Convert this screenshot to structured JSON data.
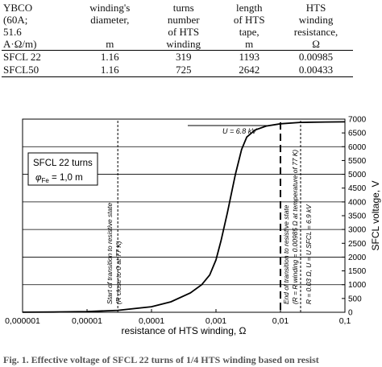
{
  "table": {
    "headers": [
      [
        "YBCO",
        "(60A;",
        "51.6",
        "A·Ω/m)"
      ],
      [
        "winding's",
        "diameter,"
      ],
      [
        "turns",
        "number",
        "of HTS",
        "winding"
      ],
      [
        "length",
        "of HTS",
        "tape,"
      ],
      [
        "HTS",
        "winding",
        "resistance,"
      ]
    ],
    "units": [
      "",
      "m",
      "",
      "m",
      "Ω"
    ],
    "rows": [
      [
        "SFCL 22",
        "1.16",
        "319",
        "1193",
        "0.00985"
      ],
      [
        "SFCL50",
        "1.16",
        "725",
        "2642",
        "0.00433"
      ]
    ]
  },
  "chart_data": {
    "type": "line",
    "x_scale": "log",
    "xlim": [
      1e-06,
      0.1
    ],
    "ylim": [
      0,
      7000
    ],
    "xlabel": "resistance of HTS winding, Ω",
    "ylabel": "SFCL voltage, V",
    "x_tick_labels": [
      "0,000001",
      "0,00001",
      "0,0001",
      "0,001",
      "0,01",
      "0,1"
    ],
    "y_tick_labels": [
      "0",
      "500",
      "1000",
      "1500",
      "2000",
      "2500",
      "3000",
      "3500",
      "4000",
      "4500",
      "5000",
      "5500",
      "6000",
      "6500",
      "7000"
    ],
    "y_gridlines_every": 1000,
    "series": [
      {
        "x": [
          1e-06,
          3e-06,
          1e-05,
          3e-05,
          0.0001,
          0.0002,
          0.0004,
          0.0006,
          0.0008,
          0.001,
          0.0012,
          0.0015,
          0.002,
          0.0025,
          0.003,
          0.004,
          0.006,
          0.01,
          0.02,
          0.05,
          0.1
        ],
        "y": [
          3,
          8,
          25,
          70,
          200,
          380,
          700,
          1000,
          1350,
          1900,
          2600,
          3600,
          5000,
          5900,
          6350,
          6600,
          6750,
          6830,
          6880,
          6895,
          6900
        ]
      }
    ],
    "annotations": {
      "u_line": "U = 6.8 kV",
      "legend_line1": "SFCL 22 turns",
      "legend_line2_symbol": "φ",
      "legend_line2_sub": "Fe",
      "legend_line2_rest": " = 1,0 m",
      "start_transition_1": "Start of transition to resistive state",
      "start_transition_2": "(R  close to 0 at 77 K)",
      "end_transition_1": "End of transition to resistive state",
      "end_transition_2": "(R = R winding = 0.00985 Ω at temperature of 77 K)",
      "r_label": "R = 0.03 Ω, U = U SFCL = 6.9 kV"
    },
    "vlines": [
      3e-05,
      0.01
    ]
  },
  "caption": "Fig. 1.   Effective voltage of SFCL 22 turns of 1/4 HTS winding based on resist"
}
